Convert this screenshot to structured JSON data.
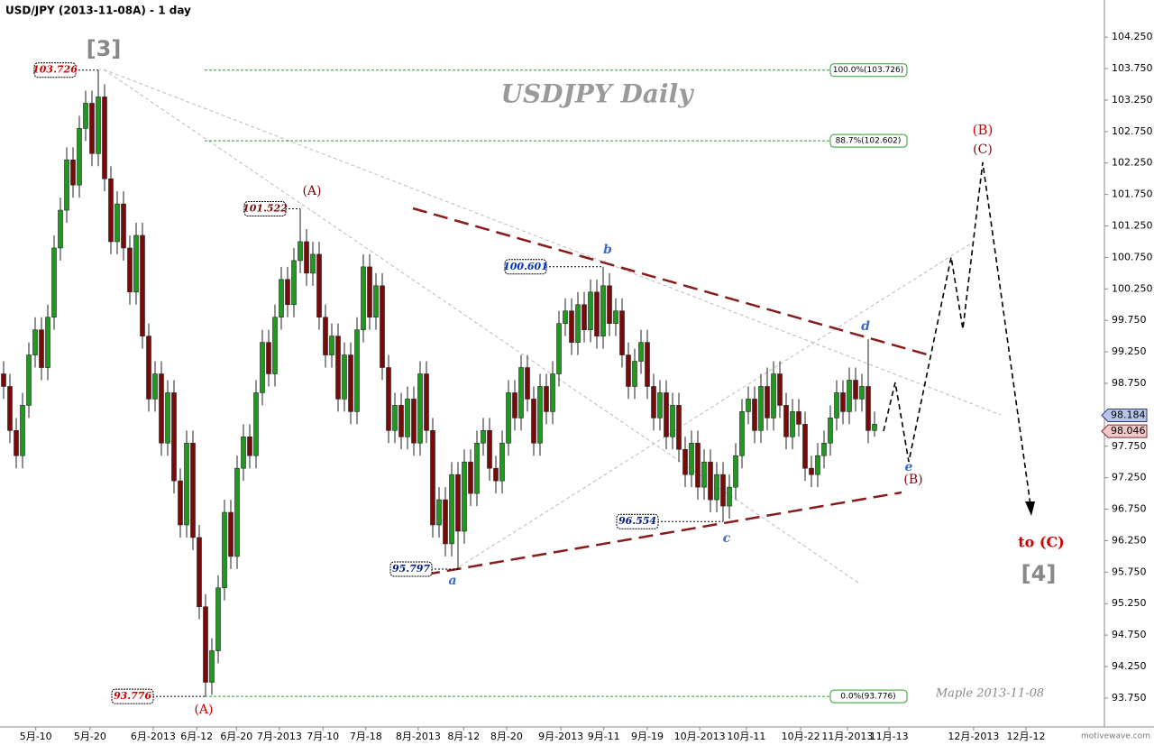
{
  "chart_data": {
    "type": "candlestick",
    "title": "USD/JPY (2013-11-08A) - 1 day",
    "watermark": "USDJPY  Daily",
    "signature": "Maple  2013-11-08",
    "brand": "motivewave.com",
    "up_color": "#1f9a1f",
    "down_color": "#7a0a0a",
    "open": [
      98.9,
      98.7,
      98.0,
      97.6,
      98.4,
      99.2,
      99.6,
      99.0,
      99.8,
      100.9,
      101.5,
      102.3,
      101.9,
      102.8,
      103.2,
      102.4,
      103.3,
      102.0,
      101.0,
      101.6,
      100.9,
      100.2,
      101.1,
      99.5,
      98.5,
      98.9,
      97.8,
      98.6,
      97.2,
      96.5,
      97.8,
      96.3,
      95.2,
      94.0,
      94.5,
      95.5,
      96.7,
      96.0,
      97.4,
      97.9,
      97.6,
      98.6,
      99.4,
      98.9,
      99.8,
      100.4,
      100.0,
      100.7,
      101.0,
      100.5,
      100.8,
      99.8,
      99.2,
      99.5,
      98.5,
      99.2,
      98.3,
      99.6,
      100.6,
      99.8,
      100.3,
      99.0,
      98.0,
      98.4,
      97.9,
      98.5,
      97.8,
      98.9,
      98.0,
      96.5,
      96.9,
      96.2,
      97.3,
      96.4,
      97.5,
      97.0,
      97.8,
      98.0,
      97.4,
      97.2,
      97.8,
      98.6,
      98.2,
      99.0,
      98.5,
      97.8,
      98.7,
      98.3,
      98.9,
      99.7,
      99.9,
      99.4,
      100.0,
      99.6,
      100.2,
      99.5,
      100.3,
      99.7,
      99.9,
      99.2,
      98.7,
      99.1,
      99.4,
      98.7,
      98.2,
      98.6,
      97.9,
      98.4,
      97.7,
      97.3,
      97.8,
      97.1,
      97.5,
      96.9,
      97.3,
      96.8,
      97.1,
      97.6,
      98.3,
      98.5,
      98.0,
      98.7,
      98.2,
      98.9,
      98.4,
      97.9,
      98.3,
      98.1,
      97.4,
      97.3,
      97.6,
      97.8,
      98.2,
      98.6,
      98.3,
      98.8,
      98.5,
      98.7,
      98.0
    ],
    "high": [
      99.1,
      98.9,
      98.2,
      98.6,
      99.4,
      99.8,
      99.8,
      100.0,
      101.1,
      101.7,
      102.5,
      102.5,
      103.0,
      103.4,
      103.4,
      103.726,
      103.5,
      102.2,
      101.8,
      101.8,
      101.1,
      101.3,
      101.3,
      99.7,
      99.1,
      99.1,
      98.8,
      98.8,
      97.4,
      98.0,
      98.0,
      96.5,
      95.4,
      94.7,
      95.7,
      96.9,
      96.9,
      97.6,
      98.1,
      98.1,
      98.8,
      99.6,
      99.6,
      100.0,
      100.6,
      100.6,
      100.9,
      101.522,
      101.2,
      101.0,
      101.0,
      100.0,
      99.7,
      99.7,
      99.4,
      99.4,
      99.8,
      100.8,
      100.8,
      100.5,
      100.5,
      99.2,
      98.6,
      98.6,
      98.7,
      98.7,
      99.1,
      99.1,
      98.2,
      97.1,
      97.1,
      97.5,
      97.5,
      97.7,
      97.7,
      98.0,
      98.2,
      98.2,
      97.6,
      98.0,
      98.8,
      98.8,
      99.2,
      99.2,
      98.7,
      98.9,
      98.9,
      99.1,
      99.9,
      100.1,
      100.1,
      100.2,
      100.2,
      100.4,
      100.4,
      100.601,
      100.5,
      100.1,
      100.1,
      99.4,
      99.3,
      99.6,
      99.6,
      98.9,
      98.8,
      98.8,
      98.6,
      98.6,
      97.9,
      98.0,
      98.0,
      97.7,
      97.7,
      97.5,
      97.5,
      97.3,
      97.8,
      98.5,
      98.7,
      98.7,
      98.9,
      99.0,
      99.1,
      99.1,
      98.6,
      98.5,
      98.5,
      98.3,
      97.6,
      97.8,
      98.0,
      98.4,
      98.8,
      98.8,
      99.0,
      99.0,
      98.9,
      99.45,
      98.3
    ],
    "low": [
      98.5,
      97.8,
      97.4,
      97.4,
      98.2,
      99.0,
      98.8,
      98.8,
      99.6,
      100.7,
      101.3,
      101.7,
      101.7,
      102.6,
      102.2,
      102.2,
      101.8,
      100.8,
      100.8,
      100.7,
      100.0,
      100.0,
      99.3,
      98.3,
      98.3,
      97.6,
      97.6,
      97.0,
      96.3,
      96.3,
      96.1,
      95.0,
      93.776,
      93.8,
      94.3,
      95.3,
      95.8,
      95.8,
      97.2,
      97.4,
      97.4,
      98.4,
      98.7,
      98.7,
      99.6,
      99.8,
      99.8,
      100.5,
      100.3,
      100.3,
      99.6,
      99.0,
      99.0,
      98.3,
      98.3,
      98.1,
      98.1,
      99.4,
      99.6,
      99.6,
      98.8,
      97.8,
      97.8,
      97.7,
      97.7,
      97.6,
      97.6,
      97.8,
      96.3,
      96.3,
      96.0,
      96.0,
      95.797,
      96.2,
      96.8,
      96.8,
      97.6,
      97.2,
      97.0,
      97.0,
      97.6,
      98.0,
      98.0,
      98.3,
      97.6,
      97.6,
      98.1,
      98.1,
      98.7,
      99.5,
      99.2,
      99.2,
      99.4,
      99.4,
      99.3,
      99.3,
      99.5,
      99.5,
      99.0,
      98.5,
      98.5,
      98.9,
      98.5,
      98.0,
      98.0,
      97.7,
      97.7,
      97.5,
      97.1,
      97.1,
      96.9,
      96.9,
      96.7,
      96.7,
      96.554,
      96.6,
      96.9,
      97.4,
      98.1,
      97.8,
      97.8,
      98.0,
      98.0,
      98.2,
      97.7,
      97.7,
      97.9,
      97.2,
      97.1,
      97.1,
      97.4,
      97.6,
      98.0,
      98.1,
      98.1,
      98.3,
      98.3,
      97.8,
      97.9
    ],
    "close": [
      98.7,
      98.0,
      97.6,
      98.4,
      99.2,
      99.6,
      99.0,
      99.8,
      100.9,
      101.5,
      102.3,
      101.9,
      102.8,
      103.2,
      102.4,
      103.3,
      102.0,
      101.0,
      101.6,
      100.9,
      100.2,
      101.1,
      99.5,
      98.5,
      98.9,
      97.8,
      98.6,
      97.2,
      96.5,
      97.8,
      96.3,
      95.2,
      94.0,
      94.5,
      95.5,
      96.7,
      96.0,
      97.4,
      97.9,
      97.6,
      98.6,
      99.4,
      98.9,
      99.8,
      100.4,
      100.0,
      100.7,
      101.0,
      100.5,
      100.8,
      99.8,
      99.2,
      99.5,
      98.5,
      99.2,
      98.3,
      99.6,
      100.6,
      99.8,
      100.3,
      99.0,
      98.0,
      98.4,
      97.9,
      98.5,
      97.8,
      98.9,
      98.0,
      96.5,
      96.9,
      96.2,
      97.3,
      96.4,
      97.5,
      97.0,
      97.8,
      98.0,
      97.4,
      97.2,
      97.8,
      98.6,
      98.2,
      99.0,
      98.5,
      97.8,
      98.7,
      98.3,
      98.9,
      99.7,
      99.9,
      99.4,
      100.0,
      99.6,
      100.2,
      99.5,
      100.3,
      99.7,
      99.9,
      99.2,
      98.7,
      99.1,
      99.4,
      98.7,
      98.2,
      98.6,
      97.9,
      98.4,
      97.7,
      97.3,
      97.8,
      97.1,
      97.5,
      96.9,
      97.3,
      96.8,
      97.1,
      97.6,
      98.3,
      98.5,
      98.0,
      98.7,
      98.2,
      98.9,
      98.4,
      97.9,
      98.3,
      98.1,
      97.4,
      97.3,
      97.6,
      97.8,
      98.2,
      98.6,
      98.3,
      98.8,
      98.5,
      98.7,
      98.0,
      98.1
    ],
    "xlim": [
      0,
      175
    ],
    "xticks": [
      {
        "value": 5.1,
        "label": "5月-10"
      },
      {
        "value": 13.7,
        "label": "5月-20"
      },
      {
        "value": 23.7,
        "label": "6月-2013"
      },
      {
        "value": 30.6,
        "label": "6月-12"
      },
      {
        "value": 36.9,
        "label": "6月-20"
      },
      {
        "value": 43.7,
        "label": "7月-2013"
      },
      {
        "value": 50.6,
        "label": "7月-10"
      },
      {
        "value": 57.4,
        "label": "7月-18"
      },
      {
        "value": 65.7,
        "label": "8月-2013"
      },
      {
        "value": 72.9,
        "label": "8月-12"
      },
      {
        "value": 79.7,
        "label": "8月-20"
      },
      {
        "value": 88.3,
        "label": "9月-2013"
      },
      {
        "value": 95.1,
        "label": "9月-11"
      },
      {
        "value": 102.0,
        "label": "9月-19"
      },
      {
        "value": 110.3,
        "label": "10月-2013"
      },
      {
        "value": 117.7,
        "label": "10月-11"
      },
      {
        "value": 126.3,
        "label": "10月-22"
      },
      {
        "value": 133.7,
        "label": "11月-2013"
      },
      {
        "value": 140.3,
        "label": "11月-13"
      },
      {
        "value": 153.7,
        "label": "12月-2013"
      },
      {
        "value": 162.0,
        "label": "12月-12"
      }
    ],
    "ylim": [
      93.29,
      104.84
    ],
    "yticks": [
      {
        "value": 93.75,
        "label": "93.750"
      },
      {
        "value": 94.25,
        "label": "94.250"
      },
      {
        "value": 94.75,
        "label": "94.750"
      },
      {
        "value": 95.25,
        "label": "95.250"
      },
      {
        "value": 95.75,
        "label": "95.750"
      },
      {
        "value": 96.25,
        "label": "96.250"
      },
      {
        "value": 96.75,
        "label": "96.750"
      },
      {
        "value": 97.25,
        "label": "97.250"
      },
      {
        "value": 97.75,
        "label": "97.750"
      },
      {
        "value": 98.25,
        "label": "98.250"
      },
      {
        "value": 98.75,
        "label": "98.750"
      },
      {
        "value": 99.25,
        "label": "99.250"
      },
      {
        "value": 99.75,
        "label": "99.750"
      },
      {
        "value": 100.25,
        "label": "100.250"
      },
      {
        "value": 100.75,
        "label": "100.750"
      },
      {
        "value": 101.25,
        "label": "101.250"
      },
      {
        "value": 101.75,
        "label": "101.750"
      },
      {
        "value": 102.25,
        "label": "102.250"
      },
      {
        "value": 102.75,
        "label": "102.750"
      },
      {
        "value": 103.25,
        "label": "103.250"
      },
      {
        "value": 103.75,
        "label": "103.750"
      },
      {
        "value": 104.25,
        "label": "104.250"
      }
    ],
    "price_markers": [
      98.184,
      98.046
    ],
    "price_points": [
      103.726,
      101.522,
      100.601,
      96.554,
      95.797,
      93.776
    ],
    "fib_levels": [
      {
        "value": 103.726,
        "label": "100.0%(103.726)"
      },
      {
        "value": 102.602,
        "label": "88.7%(102.602)"
      },
      {
        "value": 93.776,
        "label": "0.0%(93.776)"
      }
    ],
    "wave_labels": [
      "[3]",
      "(A)",
      "(A)",
      "a",
      "b",
      "c",
      "d",
      "e",
      "(B)",
      "(B)",
      "(C)",
      "to (C)",
      "[4]"
    ]
  }
}
